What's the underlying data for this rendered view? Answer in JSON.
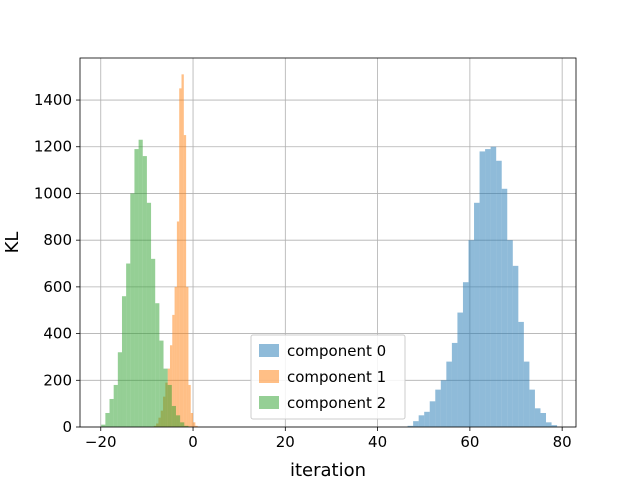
{
  "chart_data": {
    "type": "histogram",
    "title": "",
    "xlabel": "iteration",
    "ylabel": "KL",
    "xlim": [
      -24.5,
      83
    ],
    "ylim": [
      0,
      1580
    ],
    "x_ticks": [
      -20,
      0,
      20,
      40,
      60,
      80
    ],
    "y_ticks": [
      0,
      200,
      400,
      600,
      800,
      1000,
      1200,
      1400
    ],
    "grid": true,
    "legend_position": "lower-center",
    "series": [
      {
        "name": "component 0",
        "color": "#1f77b4",
        "opacity": 0.5,
        "bin_start": 46.5,
        "bin_width": 1.2,
        "counts": [
          5,
          25,
          50,
          65,
          110,
          160,
          200,
          280,
          360,
          490,
          620,
          800,
          960,
          1180,
          1190,
          1200,
          1140,
          1020,
          800,
          690,
          450,
          280,
          160,
          80,
          60,
          20,
          8
        ]
      },
      {
        "name": "component 1",
        "color": "#ff7f0e",
        "opacity": 0.5,
        "bin_start": -8.5,
        "bin_width": 0.5,
        "counts": [
          5,
          15,
          40,
          70,
          130,
          190,
          250,
          350,
          480,
          600,
          880,
          1450,
          1510,
          1250,
          600,
          180,
          60,
          20,
          5,
          1
        ]
      },
      {
        "name": "component 2",
        "color": "#2ca02c",
        "opacity": 0.5,
        "bin_start": -19.9,
        "bin_width": 0.9,
        "counts": [
          10,
          60,
          120,
          180,
          320,
          560,
          700,
          1000,
          1190,
          1230,
          1160,
          960,
          720,
          530,
          370,
          250,
          180,
          90,
          50,
          20,
          5
        ]
      }
    ]
  }
}
